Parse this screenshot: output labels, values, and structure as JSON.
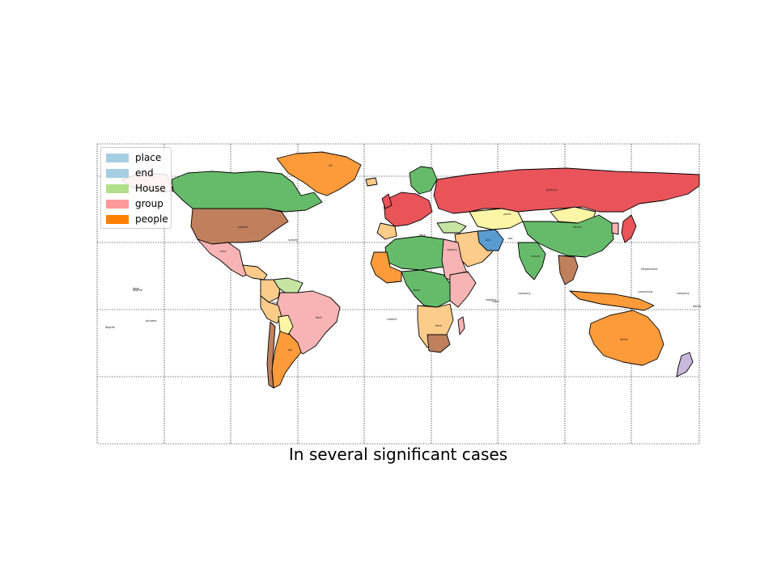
{
  "title": "In several significant cases",
  "legend": {
    "items": [
      {
        "label": "place",
        "color": "#a6cee3"
      },
      {
        "label": "end",
        "color": "#a6cee3"
      },
      {
        "label": "House",
        "color": "#b2df8a"
      },
      {
        "label": "group",
        "color": "#fb9a99"
      },
      {
        "label": "people",
        "color": "#ff7f00"
      }
    ]
  },
  "palette": {
    "green": "#66bb6a",
    "red": "#e8545a",
    "orange": "#fd9a3a",
    "brown": "#c0805e",
    "pink": "#f8b4b4",
    "yellow": "#fdf5a6",
    "peach": "#fdcb8a",
    "lightgreen": "#c6e5a3",
    "blue": "#5a9bd0",
    "lavender": "#c9b9dc",
    "border": "#000000"
  },
  "country_labels": [
    "US",
    "greenia",
    "subject",
    "sydney",
    "area",
    "back",
    "South",
    "yacht",
    "library",
    "cancer",
    "tax",
    "night",
    "degree",
    "Department",
    "computing",
    "company",
    "registry",
    "Iran",
    "help",
    "back",
    "back",
    "Peru",
    "tax",
    "ideas"
  ],
  "ocean_labels": [
    "dogs",
    "phrases",
    "subject",
    "registry",
    "company",
    "degree",
    "ability"
  ]
}
